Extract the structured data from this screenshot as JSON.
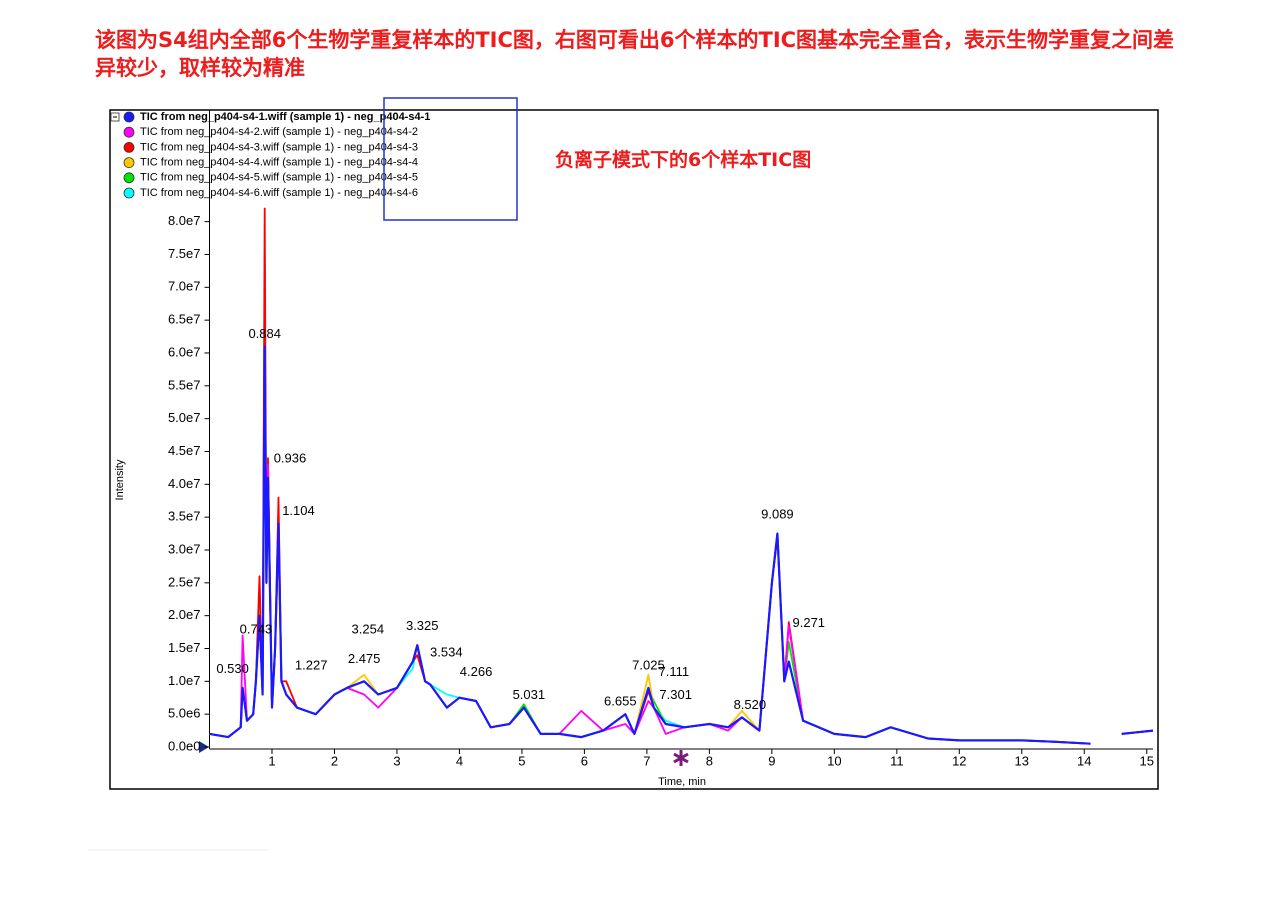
{
  "chart_data": {
    "type": "line",
    "note": "该图为S4组内全部6个生物学重复样本的TIC图，右图可看出6个样本的TIC图基本完全重合，表示生物学重复之间差异较少，取样较为精准",
    "title": "负离子模式下的6个样本TIC图",
    "x_label": "Time, min",
    "y_label": "Intensity",
    "xlim": [
      0,
      15.1
    ],
    "ylim": [
      0,
      97000000.0
    ],
    "xticks": [
      1,
      2,
      3,
      4,
      5,
      6,
      7,
      8,
      9,
      10,
      11,
      12,
      13,
      14,
      15
    ],
    "yticks": [
      {
        "value": 0,
        "label": "0.0e0"
      },
      {
        "value": 5000000.0,
        "label": "5.0e6"
      },
      {
        "value": 10000000.0,
        "label": "1.0e7"
      },
      {
        "value": 15000000.0,
        "label": "1.5e7"
      },
      {
        "value": 20000000.0,
        "label": "2.0e7"
      },
      {
        "value": 25000000.0,
        "label": "2.5e7"
      },
      {
        "value": 30000000.0,
        "label": "3.0e7"
      },
      {
        "value": 35000000.0,
        "label": "3.5e7"
      },
      {
        "value": 40000000.0,
        "label": "4.0e7"
      },
      {
        "value": 45000000.0,
        "label": "4.5e7"
      },
      {
        "value": 50000000.0,
        "label": "5.0e7"
      },
      {
        "value": 55000000.0,
        "label": "5.5e7"
      },
      {
        "value": 60000000.0,
        "label": "6.0e7"
      },
      {
        "value": 65000000.0,
        "label": "6.5e7"
      },
      {
        "value": 70000000.0,
        "label": "7.0e7"
      },
      {
        "value": 75000000.0,
        "label": "7.5e7"
      },
      {
        "value": 80000000.0,
        "label": "8.0e7"
      }
    ],
    "x": [
      0.0,
      0.3,
      0.5,
      0.53,
      0.6,
      0.7,
      0.743,
      0.8,
      0.85,
      0.884,
      0.91,
      0.936,
      1.0,
      1.05,
      1.104,
      1.15,
      1.227,
      1.4,
      1.7,
      2.0,
      2.2,
      2.475,
      2.7,
      3.0,
      3.254,
      3.325,
      3.45,
      3.534,
      3.8,
      4.0,
      4.266,
      4.5,
      4.8,
      5.031,
      5.3,
      5.6,
      5.95,
      6.3,
      6.655,
      6.8,
      7.025,
      7.111,
      7.301,
      7.6,
      8.0,
      8.3,
      8.52,
      8.8,
      9.0,
      9.089,
      9.2,
      9.271,
      9.5,
      10.0,
      10.5,
      10.9,
      11.5,
      12.0,
      12.5,
      13.0,
      13.5,
      14.1,
      14.3,
      14.6,
      15.1
    ],
    "series": [
      {
        "name": "TIC from neg_p404-s4-1.wiff (sample 1) - neg_p404-s4-1",
        "color": "#1a1aff",
        "values": [
          2000000.0,
          1500000.0,
          3000000.0,
          9000000.0,
          4000000.0,
          5000000.0,
          10000000.0,
          20000000.0,
          8000000.0,
          61000000.0,
          25000000.0,
          41000000.0,
          6000000.0,
          15000000.0,
          34000000.0,
          10000000.0,
          8000000.0,
          6000000.0,
          5000000.0,
          8000000.0,
          9000000.0,
          10000000.0,
          8000000.0,
          9000000.0,
          13000000.0,
          15500000.0,
          10000000.0,
          9500000.0,
          6000000.0,
          7500000.0,
          7000000.0,
          3000000.0,
          3500000.0,
          6000000.0,
          2000000.0,
          2000000.0,
          1500000.0,
          2500000.0,
          5000000.0,
          2000000.0,
          9000000.0,
          6000000.0,
          3500000.0,
          3000000.0,
          3500000.0,
          3000000.0,
          4500000.0,
          2500000.0,
          25000000.0,
          32500000.0,
          10000000.0,
          13000000.0,
          4000000.0,
          2000000.0,
          1500000.0,
          3000000.0,
          1300000.0,
          1000000.0,
          1000000.0,
          1000000.0,
          800000.0,
          500000.0,
          null,
          2000000.0,
          2500000.0
        ]
      },
      {
        "name": "TIC from neg_p404-s4-2.wiff (sample 1) - neg_p404-s4-2",
        "color": "#ff00ff",
        "values": [
          2000000.0,
          1500000.0,
          3000000.0,
          17000000.0,
          4000000.0,
          5000000.0,
          10000000.0,
          20000000.0,
          8000000.0,
          58000000.0,
          25000000.0,
          43000000.0,
          6000000.0,
          15000000.0,
          32000000.0,
          10000000.0,
          8000000.0,
          6000000.0,
          5000000.0,
          8000000.0,
          9000000.0,
          8000000.0,
          6000000.0,
          9000000.0,
          13000000.0,
          15500000.0,
          10000000.0,
          9500000.0,
          6000000.0,
          7500000.0,
          7000000.0,
          3000000.0,
          3500000.0,
          6000000.0,
          2000000.0,
          2000000.0,
          5500000.0,
          2500000.0,
          3500000.0,
          2000000.0,
          7000000.0,
          6000000.0,
          2000000.0,
          3000000.0,
          3500000.0,
          2500000.0,
          4500000.0,
          2500000.0,
          25000000.0,
          32500000.0,
          10000000.0,
          18500000.0,
          4000000.0,
          2000000.0,
          1500000.0,
          3000000.0,
          1300000.0,
          1000000.0,
          1000000.0,
          1000000.0,
          800000.0,
          500000.0,
          null,
          2000000.0,
          2500000.0
        ]
      },
      {
        "name": "TIC from neg_p404-s4-3.wiff (sample 1) - neg_p404-s4-3",
        "color": "#ff0000",
        "values": [
          2000000.0,
          1500000.0,
          3000000.0,
          9000000.0,
          4000000.0,
          5000000.0,
          10000000.0,
          26000000.0,
          8000000.0,
          82000000.0,
          25000000.0,
          44000000.0,
          6000000.0,
          15000000.0,
          38000000.0,
          10000000.0,
          10000000.0,
          6000000.0,
          5000000.0,
          8000000.0,
          9000000.0,
          10000000.0,
          8000000.0,
          9000000.0,
          13000000.0,
          14000000.0,
          10000000.0,
          9500000.0,
          6000000.0,
          7500000.0,
          7000000.0,
          3000000.0,
          3500000.0,
          6000000.0,
          2000000.0,
          2000000.0,
          1500000.0,
          2500000.0,
          5000000.0,
          2000000.0,
          8500000.0,
          6000000.0,
          3500000.0,
          3000000.0,
          3500000.0,
          3000000.0,
          4500000.0,
          2500000.0,
          25000000.0,
          32000000.0,
          10000000.0,
          19000000.0,
          4000000.0,
          2000000.0,
          1500000.0,
          3000000.0,
          1300000.0,
          1000000.0,
          1000000.0,
          1000000.0,
          800000.0,
          500000.0,
          null,
          2000000.0,
          2500000.0
        ]
      },
      {
        "name": "TIC from neg_p404-s4-4.wiff (sample 1) - neg_p404-s4-4",
        "color": "#ffc800",
        "values": [
          2000000.0,
          1500000.0,
          3000000.0,
          9000000.0,
          4000000.0,
          5000000.0,
          10000000.0,
          20000000.0,
          8000000.0,
          65000000.0,
          25000000.0,
          41000000.0,
          6000000.0,
          15000000.0,
          34000000.0,
          10000000.0,
          8000000.0,
          6000000.0,
          5000000.0,
          8000000.0,
          9000000.0,
          11000000.0,
          8000000.0,
          9000000.0,
          13000000.0,
          15000000.0,
          10000000.0,
          9500000.0,
          6000000.0,
          7500000.0,
          7000000.0,
          3000000.0,
          3500000.0,
          6000000.0,
          2000000.0,
          2000000.0,
          1500000.0,
          2500000.0,
          5000000.0,
          2000000.0,
          11000000.0,
          6000000.0,
          3500000.0,
          3000000.0,
          3500000.0,
          3000000.0,
          5500000.0,
          2500000.0,
          25000000.0,
          32500000.0,
          10000000.0,
          13000000.0,
          4000000.0,
          2000000.0,
          1500000.0,
          3000000.0,
          1300000.0,
          1000000.0,
          1000000.0,
          1000000.0,
          800000.0,
          500000.0,
          null,
          2000000.0,
          2500000.0
        ]
      },
      {
        "name": "TIC from neg_p404-s4-5.wiff (sample 1) - neg_p404-s4-5",
        "color": "#00e600",
        "values": [
          2000000.0,
          1500000.0,
          3000000.0,
          9000000.0,
          4000000.0,
          5000000.0,
          10000000.0,
          20000000.0,
          8000000.0,
          70000000.0,
          25000000.0,
          42000000.0,
          6000000.0,
          15000000.0,
          34000000.0,
          10000000.0,
          8000000.0,
          6000000.0,
          5000000.0,
          8000000.0,
          9000000.0,
          10000000.0,
          8000000.0,
          9000000.0,
          13000000.0,
          15500000.0,
          10000000.0,
          9500000.0,
          6000000.0,
          7500000.0,
          7000000.0,
          3000000.0,
          3500000.0,
          6500000.0,
          2000000.0,
          2000000.0,
          1500000.0,
          2500000.0,
          5000000.0,
          2000000.0,
          9000000.0,
          7000000.0,
          3500000.0,
          3000000.0,
          3500000.0,
          3000000.0,
          4500000.0,
          2500000.0,
          25000000.0,
          32500000.0,
          10000000.0,
          16000000.0,
          4000000.0,
          2000000.0,
          1500000.0,
          3000000.0,
          1300000.0,
          1000000.0,
          1000000.0,
          1000000.0,
          800000.0,
          500000.0,
          null,
          2000000.0,
          2500000.0
        ]
      },
      {
        "name": "TIC from neg_p404-s4-6.wiff (sample 1) - neg_p404-s4-6",
        "color": "#00ffff",
        "values": [
          2000000.0,
          1500000.0,
          3000000.0,
          9000000.0,
          4000000.0,
          5000000.0,
          10000000.0,
          22000000.0,
          8000000.0,
          75000000.0,
          25000000.0,
          41000000.0,
          6000000.0,
          15000000.0,
          34000000.0,
          10000000.0,
          8000000.0,
          6000000.0,
          5000000.0,
          8000000.0,
          9000000.0,
          10000000.0,
          8000000.0,
          9000000.0,
          12000000.0,
          15500000.0,
          10000000.0,
          9500000.0,
          8000000.0,
          7500000.0,
          7000000.0,
          3000000.0,
          3500000.0,
          6000000.0,
          2000000.0,
          2000000.0,
          1500000.0,
          2500000.0,
          5000000.0,
          2000000.0,
          9000000.0,
          6000000.0,
          4000000.0,
          3000000.0,
          3500000.0,
          3000000.0,
          4500000.0,
          2500000.0,
          25000000.0,
          32500000.0,
          10000000.0,
          13000000.0,
          4000000.0,
          2000000.0,
          1500000.0,
          3000000.0,
          1300000.0,
          1000000.0,
          1000000.0,
          1000000.0,
          800000.0,
          500000.0,
          null,
          2000000.0,
          2500000.0
        ]
      }
    ],
    "annotations": [
      {
        "x": 0.53,
        "label": "0.530",
        "y": 10000000.0
      },
      {
        "x": 0.743,
        "label": "0.743",
        "y": 16000000.0
      },
      {
        "x": 0.884,
        "label": "0.884",
        "y": 61000000.0
      },
      {
        "x": 0.936,
        "label": "0.936",
        "y": 42000000.0
      },
      {
        "x": 1.104,
        "label": "1.104",
        "y": 34000000.0
      },
      {
        "x": 1.227,
        "label": "1.227",
        "y": 10500000.0
      },
      {
        "x": 2.475,
        "label": "2.475",
        "y": 11500000.0
      },
      {
        "x": 3.254,
        "label": "3.254",
        "y": 16000000.0
      },
      {
        "x": 3.325,
        "label": "3.325",
        "y": 16500000.0
      },
      {
        "x": 3.534,
        "label": "3.534",
        "y": 12500000.0
      },
      {
        "x": 4.266,
        "label": "4.266",
        "y": 9500000.0
      },
      {
        "x": 5.031,
        "label": "5.031",
        "y": 6000000.0
      },
      {
        "x": 6.655,
        "label": "6.655",
        "y": 5000000.0
      },
      {
        "x": 7.025,
        "label": "7.025",
        "y": 10500000.0
      },
      {
        "x": 7.111,
        "label": "7.111",
        "y": 9500000.0
      },
      {
        "x": 7.301,
        "label": "7.301",
        "y": 6000000.0
      },
      {
        "x": 8.52,
        "label": "8.520",
        "y": 4500000.0
      },
      {
        "x": 9.089,
        "label": "9.089",
        "y": 33500000.0
      },
      {
        "x": 9.271,
        "label": "9.271",
        "y": 17000000.0
      }
    ]
  }
}
